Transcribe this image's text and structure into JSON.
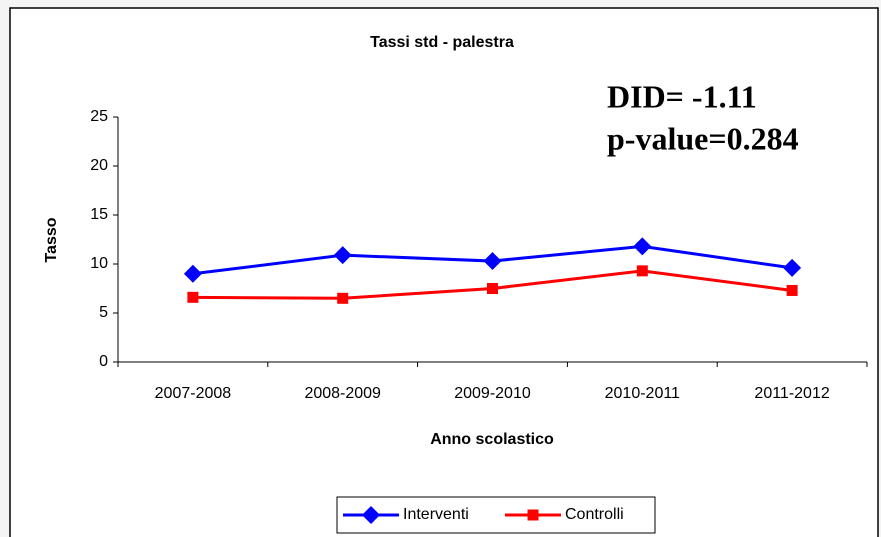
{
  "chart_data": {
    "type": "line",
    "title": "Tassi std - palestra",
    "annotations": [
      "DID= -1.11",
      "p-value=0.284"
    ],
    "y_label": "Tasso",
    "x_label": "Anno scolastico",
    "categories": [
      "2007-2008",
      "2008-2009",
      "2009-2010",
      "2010-2011",
      "2011-2012"
    ],
    "series": [
      {
        "name": "Interventi",
        "color": "#0000ff",
        "marker": "diamond",
        "values": [
          9.0,
          10.9,
          10.3,
          11.8,
          9.6
        ]
      },
      {
        "name": "Controlli",
        "color": "#ff0000",
        "marker": "square",
        "values": [
          6.6,
          6.5,
          7.5,
          9.3,
          7.3
        ]
      }
    ],
    "ylim": [
      0,
      25
    ],
    "yticks": [
      0,
      5,
      10,
      15,
      20,
      25
    ],
    "legend": "bottom"
  }
}
